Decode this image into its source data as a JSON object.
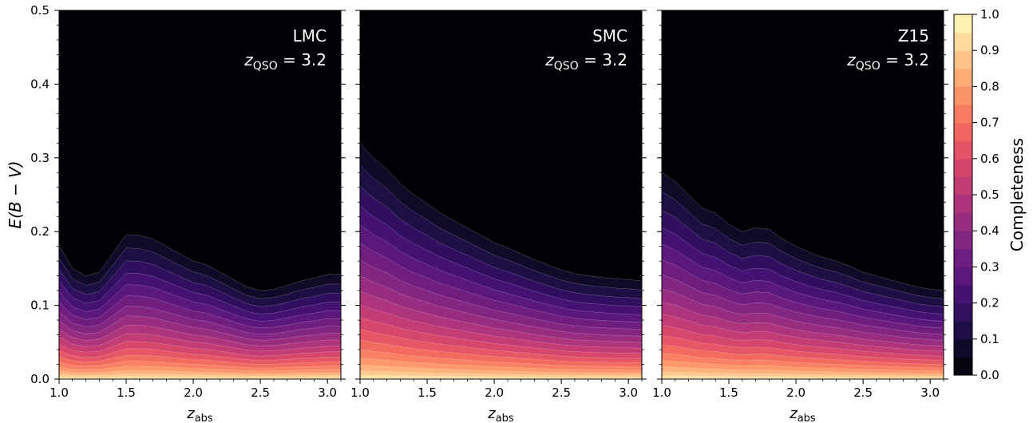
{
  "chart_data": {
    "type": "filled-contour",
    "colormap": "magma",
    "shared_y": {
      "label_main": "E(B − V)",
      "ylim": [
        0,
        0.5
      ],
      "ticks": [
        0.0,
        0.1,
        0.2,
        0.3,
        0.4,
        0.5
      ],
      "tick_labels": [
        "0.0",
        "0.1",
        "0.2",
        "0.3",
        "0.4",
        "0.5"
      ]
    },
    "x_axis": {
      "label_main": "z",
      "label_sub": "abs",
      "xlim": [
        1.0,
        3.1
      ],
      "ticks": [
        1.0,
        1.5,
        2.0,
        2.5,
        3.0
      ],
      "tick_labels": [
        "1.0",
        "1.5",
        "2.0",
        "2.5",
        "3.0"
      ]
    },
    "contour_levels": [
      0.05,
      0.1,
      0.15,
      0.2,
      0.25,
      0.3,
      0.35,
      0.4,
      0.45,
      0.5,
      0.55,
      0.6,
      0.65,
      0.7,
      0.75,
      0.8,
      0.85,
      0.9,
      0.95
    ],
    "panels": [
      {
        "name": "LMC",
        "annotation_line1": "LMC",
        "annotation_line2_main": "z",
        "annotation_line2_sub": "QSO",
        "annotation_line2_rest": " = 3.2",
        "x": [
          1.0,
          1.1,
          1.2,
          1.3,
          1.4,
          1.5,
          1.6,
          1.7,
          1.8,
          1.9,
          2.0,
          2.1,
          2.2,
          2.3,
          2.4,
          2.5,
          2.6,
          2.7,
          2.8,
          2.9,
          3.0,
          3.1
        ],
        "ebv_at_completeness_0_05": [
          0.181,
          0.15,
          0.14,
          0.145,
          0.17,
          0.196,
          0.195,
          0.19,
          0.18,
          0.17,
          0.16,
          0.155,
          0.145,
          0.135,
          0.125,
          0.12,
          0.122,
          0.127,
          0.133,
          0.137,
          0.142,
          0.142
        ]
      },
      {
        "name": "SMC",
        "annotation_line1": "SMC",
        "annotation_line2_main": "z",
        "annotation_line2_sub": "QSO",
        "annotation_line2_rest": " = 3.2",
        "x": [
          1.0,
          1.1,
          1.2,
          1.3,
          1.4,
          1.5,
          1.6,
          1.7,
          1.8,
          1.9,
          2.0,
          2.1,
          2.2,
          2.3,
          2.4,
          2.5,
          2.6,
          2.7,
          2.8,
          2.9,
          3.0,
          3.1
        ],
        "ebv_at_completeness_0_05": [
          0.32,
          0.3,
          0.285,
          0.265,
          0.25,
          0.238,
          0.225,
          0.215,
          0.205,
          0.195,
          0.185,
          0.178,
          0.17,
          0.162,
          0.155,
          0.148,
          0.143,
          0.14,
          0.138,
          0.136,
          0.135,
          0.133
        ]
      },
      {
        "name": "Z15",
        "annotation_line1": "Z15",
        "annotation_line2_main": "z",
        "annotation_line2_sub": "QSO",
        "annotation_line2_rest": " = 3.2",
        "x": [
          1.0,
          1.1,
          1.2,
          1.3,
          1.4,
          1.5,
          1.6,
          1.7,
          1.8,
          1.9,
          2.0,
          2.1,
          2.2,
          2.3,
          2.4,
          2.5,
          2.6,
          2.7,
          2.8,
          2.9,
          3.0,
          3.1
        ],
        "ebv_at_completeness_0_05": [
          0.28,
          0.268,
          0.25,
          0.232,
          0.225,
          0.21,
          0.2,
          0.205,
          0.203,
          0.19,
          0.18,
          0.172,
          0.165,
          0.16,
          0.153,
          0.145,
          0.14,
          0.135,
          0.13,
          0.125,
          0.122,
          0.12
        ]
      }
    ],
    "colorbar": {
      "label": "Completeness",
      "range": [
        0.0,
        1.0
      ],
      "ticks": [
        0.0,
        0.1,
        0.2,
        0.3,
        0.4,
        0.5,
        0.6,
        0.7,
        0.8,
        0.9,
        1.0
      ],
      "tick_labels": [
        "0.0",
        "0.1",
        "0.2",
        "0.3",
        "0.4",
        "0.5",
        "0.6",
        "0.7",
        "0.8",
        "0.9",
        "1.0"
      ]
    }
  }
}
